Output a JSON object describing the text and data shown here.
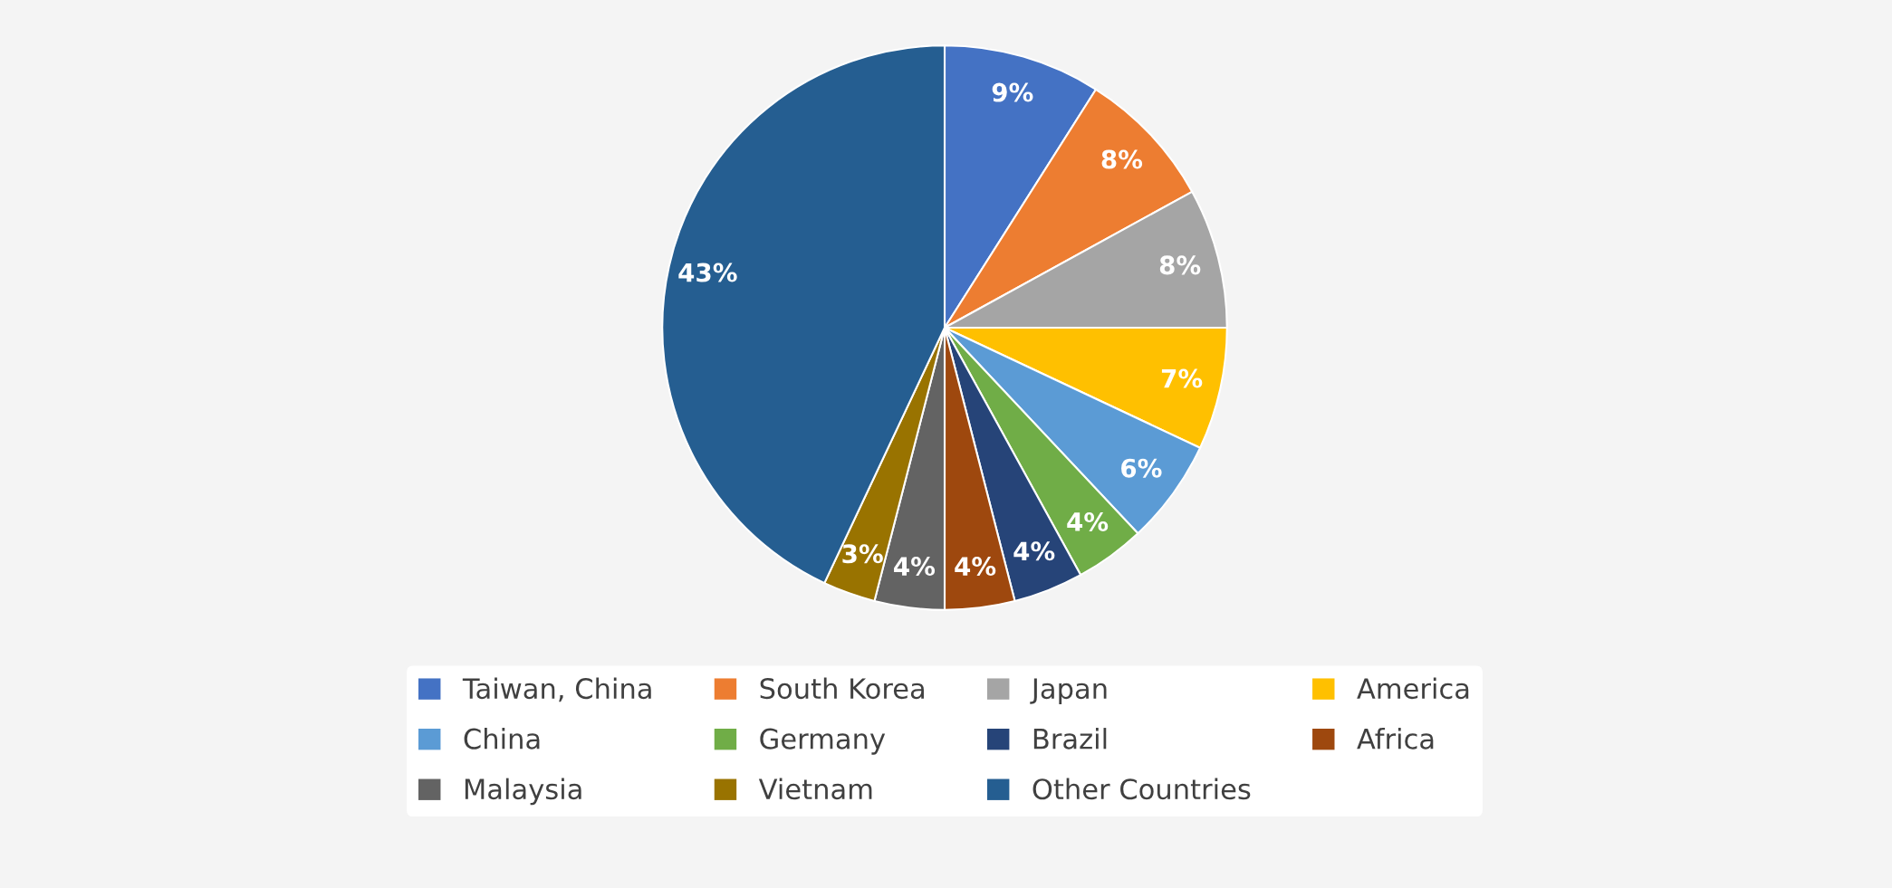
{
  "chart_data": {
    "type": "pie",
    "categories": [
      "Taiwan, China",
      "South Korea",
      "Japan",
      "America",
      "China",
      "Germany",
      "Brazil",
      "Africa",
      "Malaysia",
      "Vietnam",
      "Other Countries"
    ],
    "values": [
      9,
      8,
      8,
      7,
      6,
      4,
      4,
      4,
      4,
      3,
      43
    ],
    "value_labels": [
      "9%",
      "8%",
      "8%",
      "7%",
      "6%",
      "4%",
      "4%",
      "4%",
      "4%",
      "3%",
      "43%"
    ],
    "colors": [
      "#4472c4",
      "#ed7d31",
      "#a5a5a5",
      "#ffc000",
      "#5b9bd5",
      "#70ad47",
      "#264478",
      "#9e480e",
      "#636363",
      "#997300",
      "#255e91"
    ],
    "legend": "bottom"
  }
}
